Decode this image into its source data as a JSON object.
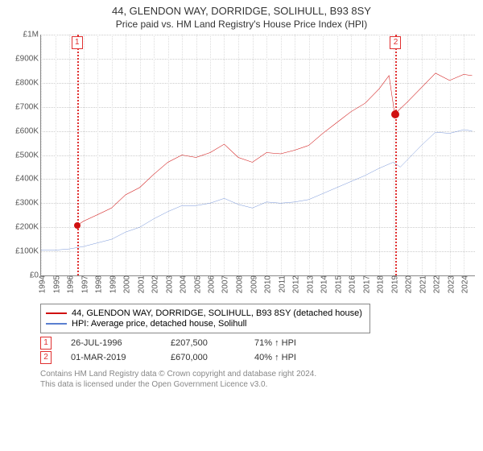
{
  "title": "44, GLENDON WAY, DORRIDGE, SOLIHULL, B93 8SY",
  "subtitle": "Price paid vs. HM Land Registry's House Price Index (HPI)",
  "chart": {
    "type": "line",
    "background_color": "#ffffff",
    "grid_color_dotted": "#cccccc",
    "axis_color": "#888888",
    "x": {
      "min": 1994,
      "max": 2024.8,
      "tick_step": 1,
      "labels": [
        "1994",
        "1995",
        "1996",
        "1997",
        "1998",
        "1999",
        "2000",
        "2001",
        "2002",
        "2003",
        "2004",
        "2005",
        "2006",
        "2007",
        "2008",
        "2009",
        "2010",
        "2011",
        "2012",
        "2013",
        "2014",
        "2015",
        "2016",
        "2017",
        "2018",
        "2019",
        "2020",
        "2021",
        "2022",
        "2023",
        "2024"
      ],
      "label_fontsize": 10
    },
    "y": {
      "min": 0,
      "max": 1000000,
      "tick_step": 100000,
      "format_prefix": "£",
      "labels": [
        "£0",
        "£100K",
        "£200K",
        "£300K",
        "£400K",
        "£500K",
        "£600K",
        "£700K",
        "£800K",
        "£900K",
        "£1M"
      ],
      "label_fontsize": 10
    },
    "markers": [
      {
        "x": 1996.56,
        "label": "1",
        "color": "#e03030"
      },
      {
        "x": 2019.17,
        "label": "2",
        "color": "#e03030"
      }
    ],
    "series": [
      {
        "name": "price_paid",
        "label": "44, GLENDON WAY, DORRIDGE, SOLIHULL, B93 8SY (detached house)",
        "color": "#d01010",
        "line_width": 1.5,
        "points": [
          [
            1996.56,
            207500
          ],
          [
            1997,
            225000
          ],
          [
            1998,
            252000
          ],
          [
            1999,
            280000
          ],
          [
            2000,
            335000
          ],
          [
            2001,
            365000
          ],
          [
            2002,
            420000
          ],
          [
            2003,
            470000
          ],
          [
            2004,
            500000
          ],
          [
            2005,
            490000
          ],
          [
            2006,
            510000
          ],
          [
            2007,
            545000
          ],
          [
            2008,
            490000
          ],
          [
            2009,
            470000
          ],
          [
            2010,
            510000
          ],
          [
            2011,
            505000
          ],
          [
            2012,
            520000
          ],
          [
            2013,
            540000
          ],
          [
            2014,
            590000
          ],
          [
            2015,
            635000
          ],
          [
            2016,
            680000
          ],
          [
            2017,
            715000
          ],
          [
            2018,
            775000
          ],
          [
            2018.7,
            830000
          ],
          [
            2019.1,
            670000
          ],
          [
            2020,
            720000
          ],
          [
            2021,
            780000
          ],
          [
            2022,
            840000
          ],
          [
            2023,
            810000
          ],
          [
            2024,
            835000
          ],
          [
            2024.6,
            830000
          ]
        ],
        "hard_points": [
          {
            "x": 1996.56,
            "y": 207500,
            "r": 4
          },
          {
            "x": 2019.17,
            "y": 670000,
            "r": 5
          }
        ]
      },
      {
        "name": "hpi",
        "label": "HPI: Average price, detached house, Solihull",
        "color": "#5a7fd0",
        "line_width": 1.2,
        "points": [
          [
            1994,
            105000
          ],
          [
            1995,
            105000
          ],
          [
            1996,
            110000
          ],
          [
            1997,
            120000
          ],
          [
            1998,
            135000
          ],
          [
            1999,
            150000
          ],
          [
            2000,
            180000
          ],
          [
            2001,
            200000
          ],
          [
            2002,
            235000
          ],
          [
            2003,
            265000
          ],
          [
            2004,
            290000
          ],
          [
            2005,
            290000
          ],
          [
            2006,
            300000
          ],
          [
            2007,
            320000
          ],
          [
            2008,
            295000
          ],
          [
            2009,
            280000
          ],
          [
            2010,
            305000
          ],
          [
            2011,
            300000
          ],
          [
            2012,
            305000
          ],
          [
            2013,
            315000
          ],
          [
            2014,
            340000
          ],
          [
            2015,
            365000
          ],
          [
            2016,
            390000
          ],
          [
            2017,
            415000
          ],
          [
            2018,
            445000
          ],
          [
            2019,
            470000
          ],
          [
            2019.5,
            450000
          ],
          [
            2020,
            480000
          ],
          [
            2021,
            540000
          ],
          [
            2022,
            595000
          ],
          [
            2023,
            590000
          ],
          [
            2024,
            605000
          ],
          [
            2024.6,
            600000
          ]
        ]
      }
    ]
  },
  "legend": {
    "items": [
      {
        "color": "#d01010",
        "label": "44, GLENDON WAY, DORRIDGE, SOLIHULL, B93 8SY (detached house)"
      },
      {
        "color": "#5a7fd0",
        "label": "HPI: Average price, detached house, Solihull"
      }
    ]
  },
  "transactions": [
    {
      "n": "1",
      "date": "26-JUL-1996",
      "price": "£207,500",
      "change": "71% ↑ HPI"
    },
    {
      "n": "2",
      "date": "01-MAR-2019",
      "price": "£670,000",
      "change": "40% ↑ HPI"
    }
  ],
  "attribution": {
    "line1": "Contains HM Land Registry data © Crown copyright and database right 2024.",
    "line2": "This data is licensed under the Open Government Licence v3.0."
  }
}
